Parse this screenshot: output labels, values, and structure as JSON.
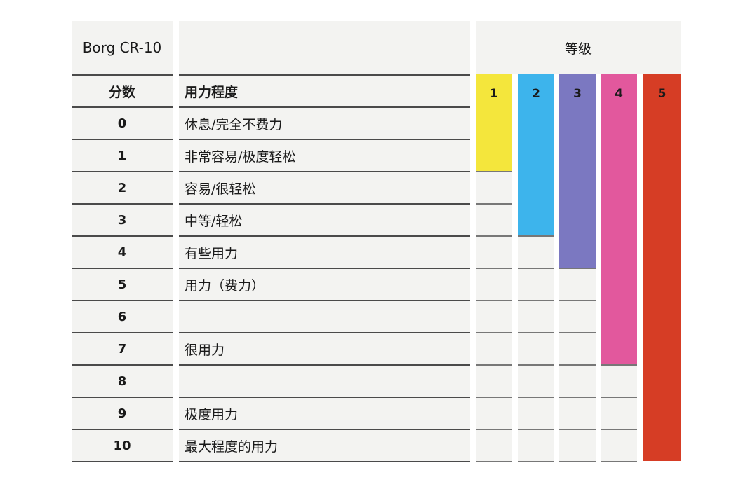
{
  "header": {
    "scale_name": "Borg CR-10",
    "grade_title": "等级",
    "score_label": "分数",
    "effort_label": "用力程度"
  },
  "rows": [
    {
      "score": "0",
      "desc": "休息/完全不费力"
    },
    {
      "score": "1",
      "desc": "非常容易/极度轻松"
    },
    {
      "score": "2",
      "desc": "容易/很轻松"
    },
    {
      "score": "3",
      "desc": "中等/轻松"
    },
    {
      "score": "4",
      "desc": "有些用力"
    },
    {
      "score": "5",
      "desc": "用力（费力）"
    },
    {
      "score": "6",
      "desc": ""
    },
    {
      "score": "7",
      "desc": "很用力"
    },
    {
      "score": "8",
      "desc": ""
    },
    {
      "score": "9",
      "desc": "极度用力"
    },
    {
      "score": "10",
      "desc": "最大程度的用力"
    }
  ],
  "grades": [
    {
      "label": "1",
      "color": "#f4e63c",
      "max_score": 1
    },
    {
      "label": "2",
      "color": "#3db4ec",
      "max_score": 3
    },
    {
      "label": "3",
      "color": "#7b78c1",
      "max_score": 4
    },
    {
      "label": "4",
      "color": "#e2589d",
      "max_score": 7
    },
    {
      "label": "5",
      "color": "#d63d25",
      "max_score": 10
    }
  ]
}
